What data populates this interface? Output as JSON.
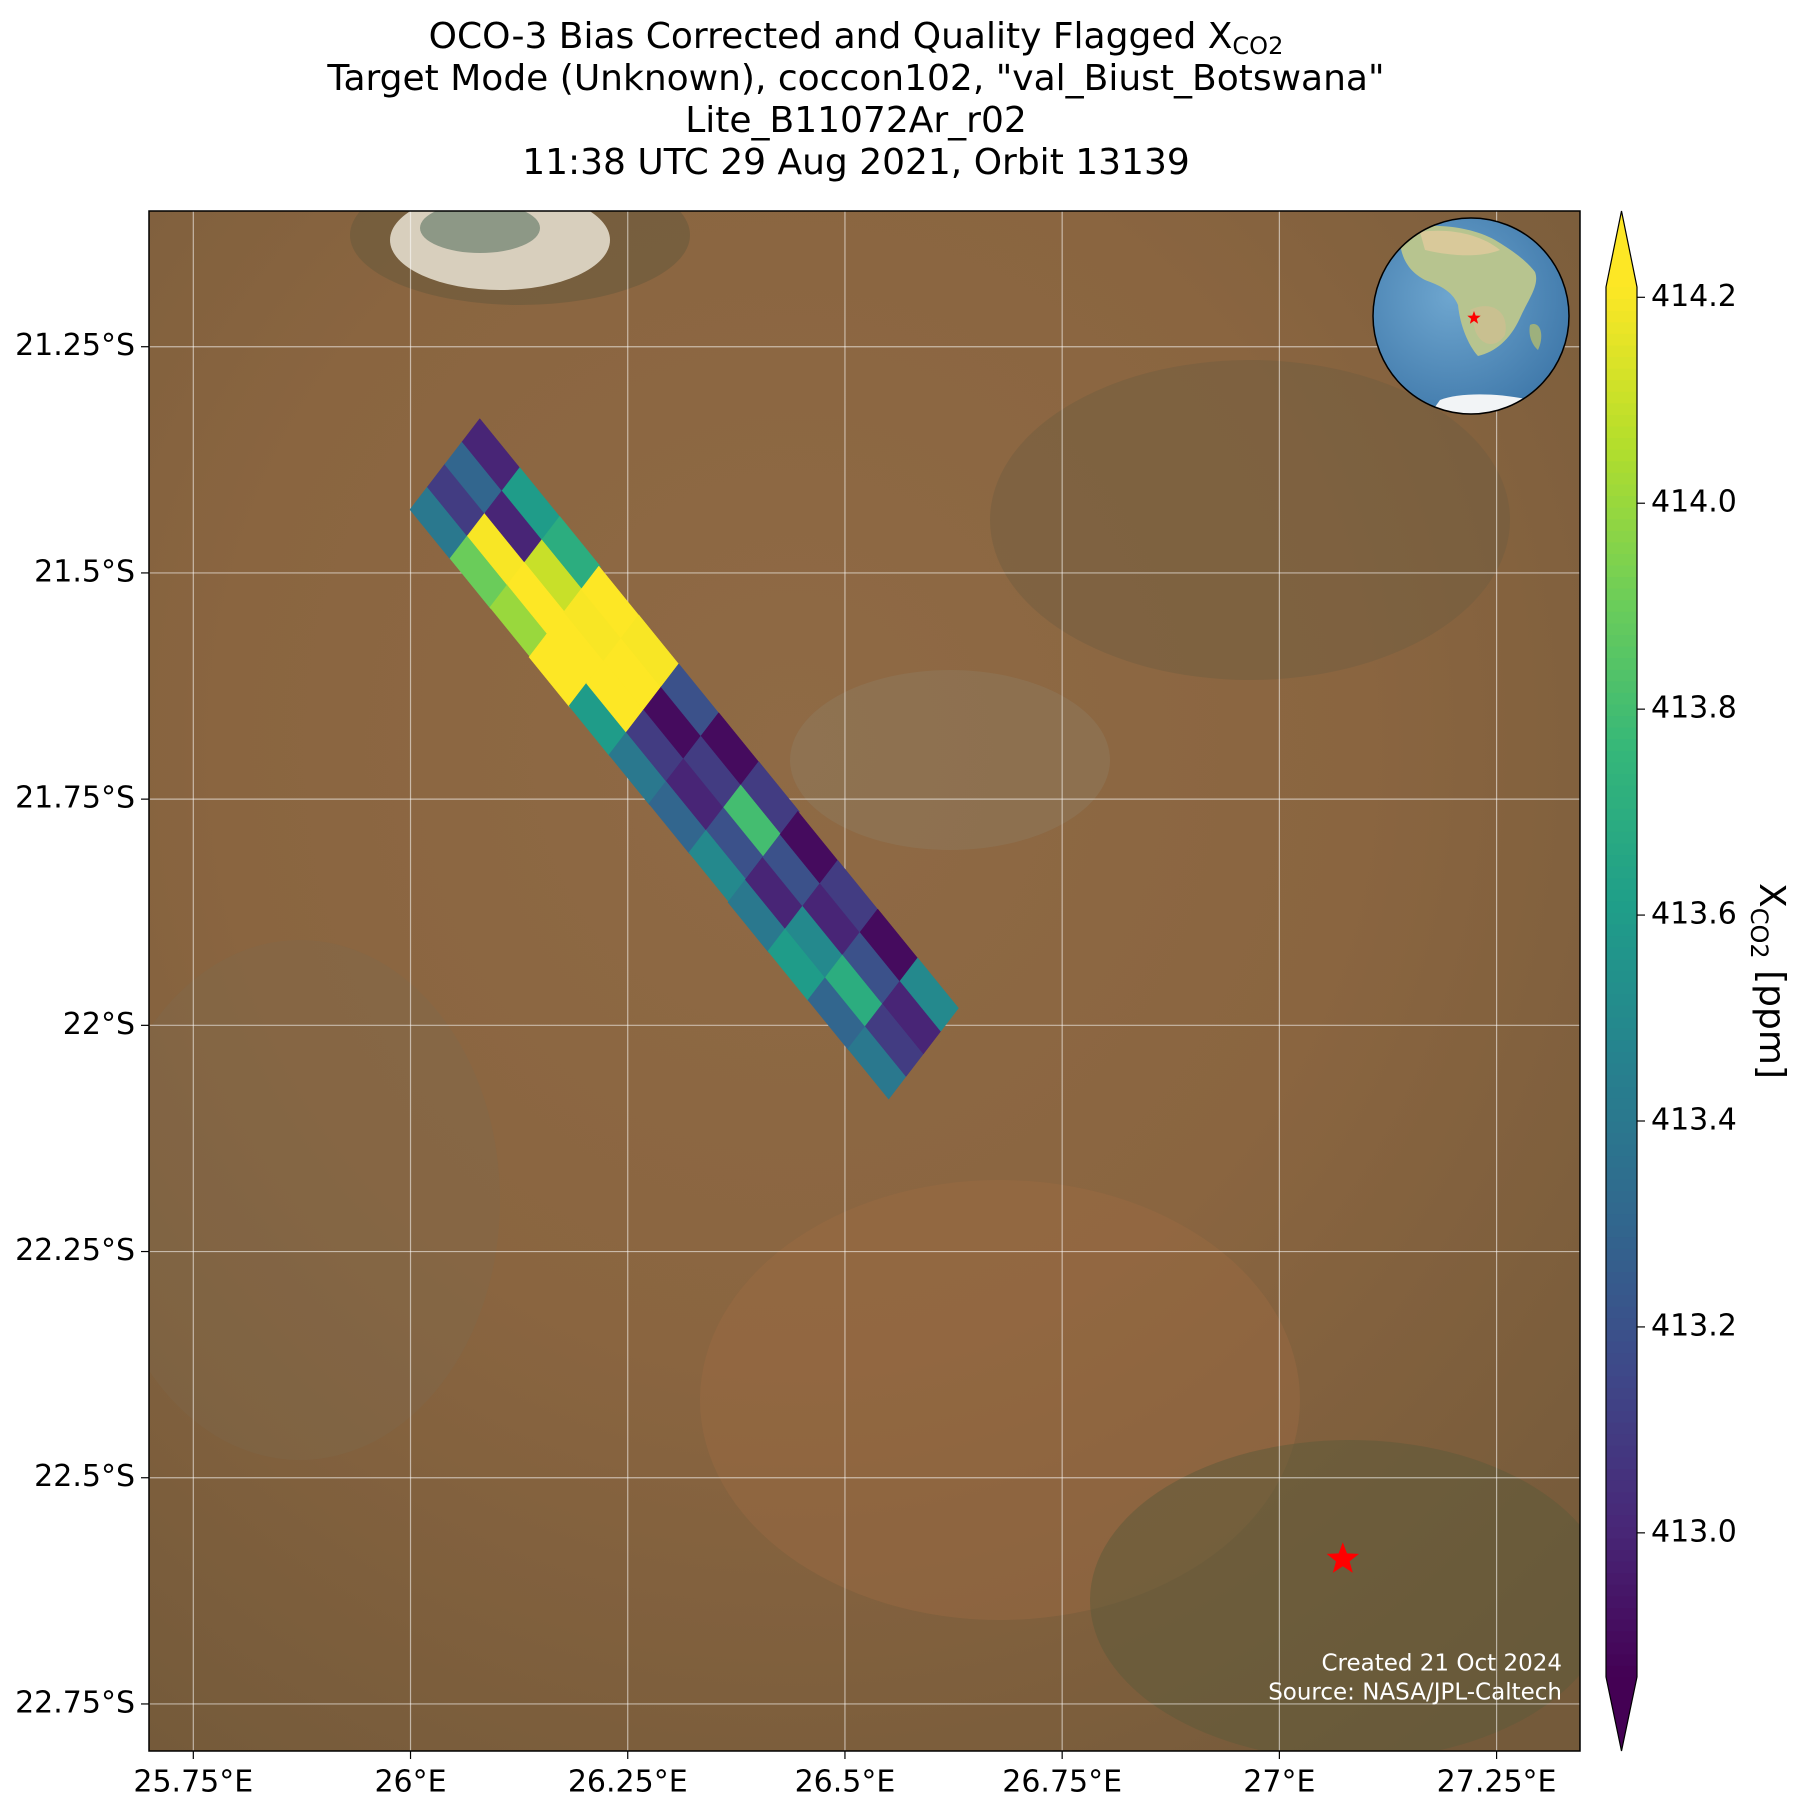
{
  "chart_data": {
    "type": "map",
    "title_lines": [
      "OCO-3 Bias Corrected and Quality Flagged X",
      "Target Mode (Unknown), coccon102, \"val_Biust_Botswana\"",
      "Lite_B11072Ar_r02",
      "11:38 UTC 29 Aug 2021, Orbit 13139"
    ],
    "title_subscript": "CO2",
    "xlim": [
      25.699,
      27.346
    ],
    "ylim": [
      -22.802,
      -21.1
    ],
    "xticks": [
      {
        "value": 25.75,
        "label": "25.75°E"
      },
      {
        "value": 26,
        "label": "26°E"
      },
      {
        "value": 26.25,
        "label": "26.25°E"
      },
      {
        "value": 26.5,
        "label": "26.5°E"
      },
      {
        "value": 26.75,
        "label": "26.75°E"
      },
      {
        "value": 27,
        "label": "27°E"
      },
      {
        "value": 27.25,
        "label": "27.25°E"
      }
    ],
    "yticks": [
      {
        "value": -21.25,
        "label": "21.25°S"
      },
      {
        "value": -21.5,
        "label": "21.5°S"
      },
      {
        "value": -21.75,
        "label": "21.75°S"
      },
      {
        "value": -22,
        "label": "22°S"
      },
      {
        "value": -22.25,
        "label": "22.25°S"
      },
      {
        "value": -22.5,
        "label": "22.5°S"
      },
      {
        "value": -22.75,
        "label": "22.75°S"
      }
    ],
    "grid": true,
    "colormap": "viridis",
    "clim": [
      412.86,
      414.21
    ],
    "cticks": [
      {
        "value": 413.0,
        "label": "413.0"
      },
      {
        "value": 413.2,
        "label": "413.2"
      },
      {
        "value": 413.4,
        "label": "413.4"
      },
      {
        "value": 413.6,
        "label": "413.6"
      },
      {
        "value": 413.8,
        "label": "413.8"
      },
      {
        "value": 414.0,
        "label": "414.0"
      },
      {
        "value": 414.2,
        "label": "414.2"
      }
    ],
    "colorbar_label": "X",
    "colorbar_label_subscript": "CO2",
    "colorbar_label_unit": "[ppm]",
    "site": {
      "lon": 27.073,
      "lat": -22.59,
      "color": "#ff0000"
    },
    "soundings": {
      "lon": [
        26.033,
        26.053,
        26.073,
        26.093,
        26.079,
        26.099,
        26.119,
        26.139,
        26.125,
        26.145,
        26.165,
        26.185,
        26.17,
        26.19,
        26.21,
        26.23,
        26.216,
        26.236,
        26.256,
        26.276,
        26.262,
        26.282,
        26.302,
        26.322,
        26.308,
        26.328,
        26.348,
        26.368,
        26.354,
        26.374,
        26.394,
        26.414,
        26.399,
        26.419,
        26.439,
        26.459,
        26.445,
        26.465,
        26.485,
        26.505,
        26.491,
        26.511,
        26.531,
        26.551,
        26.537,
        26.557,
        26.577,
        26.597
      ],
      "lat": [
        -21.445,
        -21.42,
        -21.395,
        -21.37,
        -21.499,
        -21.474,
        -21.449,
        -21.424,
        -21.553,
        -21.528,
        -21.503,
        -21.478,
        -21.608,
        -21.583,
        -21.558,
        -21.533,
        -21.662,
        -21.637,
        -21.612,
        -21.587,
        -21.716,
        -21.691,
        -21.666,
        -21.641,
        -21.77,
        -21.745,
        -21.72,
        -21.695,
        -21.824,
        -21.799,
        -21.774,
        -21.749,
        -21.879,
        -21.854,
        -21.829,
        -21.804,
        -21.933,
        -21.908,
        -21.883,
        -21.858,
        -21.987,
        -21.962,
        -21.937,
        -21.912,
        -22.041,
        -22.016,
        -21.991,
        -21.966
      ],
      "values": [
        413.4,
        413.1,
        413.3,
        413.0,
        413.9,
        414.2,
        413.0,
        413.6,
        414.0,
        414.3,
        414.1,
        413.7,
        414.3,
        414.3,
        414.2,
        414.3,
        413.6,
        414.3,
        414.3,
        414.2,
        413.4,
        413.1,
        412.9,
        413.2,
        413.3,
        413.0,
        413.1,
        412.9,
        413.5,
        413.2,
        413.8,
        413.1,
        413.4,
        413.0,
        413.2,
        412.9,
        413.6,
        413.5,
        413.0,
        413.1,
        413.3,
        413.7,
        413.2,
        412.9,
        413.4,
        413.1,
        413.0,
        413.5
      ]
    },
    "credits": [
      "Created 21 Oct 2024",
      "Source: NASA/JPL-Caltech"
    ]
  }
}
